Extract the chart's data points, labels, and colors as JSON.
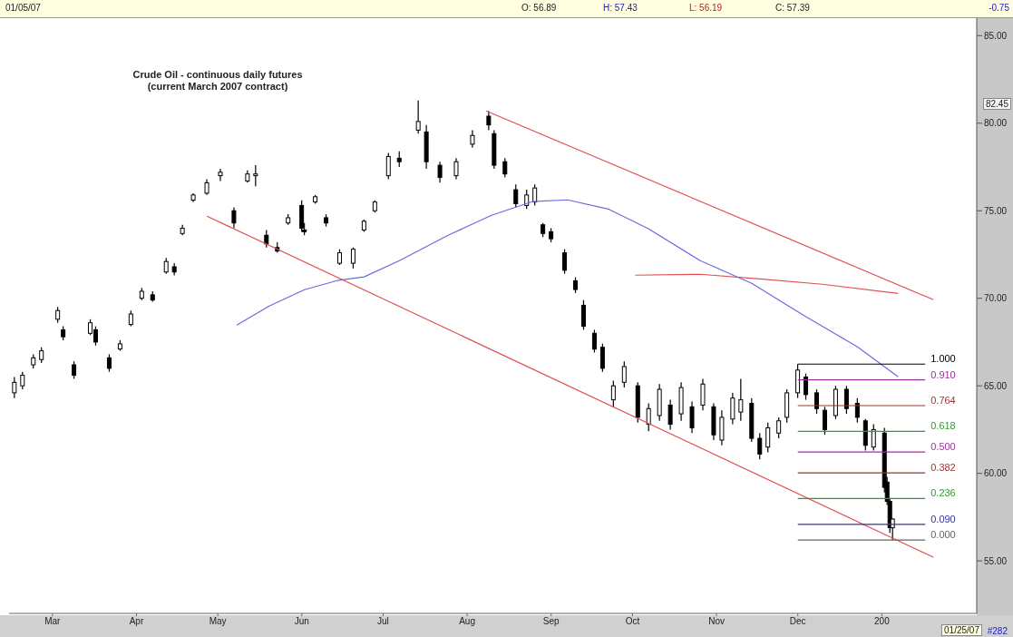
{
  "chart_data": {
    "type": "candlestick",
    "title": "Crude Oil - continuous daily futures",
    "subtitle": "(current March 2007 contract)",
    "color": "#000000",
    "x": [
      "2006-02-15",
      "2006-02-18",
      "2006-02-22",
      "2006-02-25",
      "2006-03-03",
      "2006-03-05",
      "2006-03-09",
      "2006-03-15",
      "2006-03-17",
      "2006-03-22",
      "2006-03-26",
      "2006-03-30",
      "2006-04-03",
      "2006-04-07",
      "2006-04-12",
      "2006-04-15",
      "2006-04-18",
      "2006-04-22",
      "2006-04-27",
      "2006-05-02",
      "2006-05-07",
      "2006-05-12",
      "2006-05-15",
      "2006-05-19",
      "2006-05-23",
      "2006-05-27",
      "2006-06-01",
      "2006-06-02",
      "2006-06-06",
      "2006-06-10",
      "2006-06-15",
      "2006-06-20",
      "2006-06-24",
      "2006-06-28",
      "2006-07-03",
      "2006-07-07",
      "2006-07-14",
      "2006-07-17",
      "2006-07-22",
      "2006-07-28",
      "2006-08-03",
      "2006-08-09",
      "2006-08-11",
      "2006-08-15",
      "2006-08-19",
      "2006-08-23",
      "2006-08-26",
      "2006-08-29",
      "2006-09-01",
      "2006-09-06",
      "2006-09-10",
      "2006-09-13",
      "2006-09-17",
      "2006-09-20",
      "2006-09-24",
      "2006-09-28",
      "2006-10-03",
      "2006-10-07",
      "2006-10-11",
      "2006-10-15",
      "2006-10-19",
      "2006-10-23",
      "2006-10-27",
      "2006-10-31",
      "2006-11-03",
      "2006-11-07",
      "2006-11-10",
      "2006-11-14",
      "2006-11-17",
      "2006-11-20",
      "2006-11-24",
      "2006-11-27",
      "2006-12-01",
      "2006-12-04",
      "2006-12-08",
      "2006-12-11",
      "2006-12-15",
      "2006-12-19",
      "2006-12-23",
      "2006-12-26",
      "2006-12-29",
      "2007-01-02",
      "2007-01-03",
      "2007-01-04",
      "2007-01-05"
    ],
    "ohlc": [
      [
        64.6,
        65.5,
        64.3,
        65.2
      ],
      [
        65.0,
        65.8,
        64.8,
        65.6
      ],
      [
        66.2,
        66.8,
        66.0,
        66.6
      ],
      [
        66.5,
        67.2,
        66.3,
        67.0
      ],
      [
        68.8,
        69.5,
        68.6,
        69.3
      ],
      [
        68.2,
        68.4,
        67.6,
        67.8
      ],
      [
        66.2,
        66.4,
        65.4,
        65.6
      ],
      [
        68.0,
        68.8,
        67.9,
        68.6
      ],
      [
        68.2,
        68.4,
        67.3,
        67.5
      ],
      [
        66.6,
        66.8,
        65.8,
        66.0
      ],
      [
        67.1,
        67.6,
        67.0,
        67.4
      ],
      [
        68.5,
        69.3,
        68.4,
        69.1
      ],
      [
        70.0,
        70.6,
        69.9,
        70.4
      ],
      [
        70.2,
        70.4,
        69.8,
        69.9
      ],
      [
        71.5,
        72.3,
        71.4,
        72.1
      ],
      [
        71.8,
        72.0,
        71.3,
        71.5
      ],
      [
        73.7,
        74.2,
        73.6,
        74.0
      ],
      [
        75.6,
        76.0,
        75.5,
        75.9
      ],
      [
        76.0,
        76.8,
        75.9,
        76.6
      ],
      [
        77.0,
        77.4,
        76.7,
        77.2
      ],
      [
        75.0,
        75.2,
        74.0,
        74.3
      ],
      [
        76.7,
        77.3,
        76.6,
        77.1
      ],
      [
        77.0,
        77.6,
        76.4,
        77.1
      ],
      [
        73.6,
        73.9,
        72.9,
        73.1
      ],
      [
        72.9,
        73.2,
        72.6,
        72.7
      ],
      [
        74.3,
        74.8,
        74.2,
        74.6
      ],
      [
        75.3,
        75.6,
        73.8,
        74.0
      ],
      [
        73.9,
        74.3,
        73.6,
        73.8
      ],
      [
        75.5,
        75.9,
        75.4,
        75.8
      ],
      [
        74.6,
        74.8,
        74.1,
        74.3
      ],
      [
        72.0,
        72.8,
        71.9,
        72.6
      ],
      [
        72.0,
        72.9,
        71.7,
        72.8
      ],
      [
        73.9,
        74.5,
        73.8,
        74.4
      ],
      [
        75.0,
        75.6,
        74.9,
        75.5
      ],
      [
        77.0,
        78.3,
        76.8,
        78.1
      ],
      [
        78.0,
        78.4,
        77.5,
        77.8
      ],
      [
        79.6,
        81.3,
        79.4,
        80.1
      ],
      [
        79.5,
        79.9,
        77.4,
        77.8
      ],
      [
        77.6,
        77.8,
        76.6,
        76.9
      ],
      [
        77.0,
        78.0,
        76.8,
        77.8
      ],
      [
        78.8,
        79.6,
        78.6,
        79.3
      ],
      [
        80.4,
        80.7,
        79.6,
        79.9
      ],
      [
        79.4,
        79.6,
        77.4,
        77.6
      ],
      [
        77.8,
        78.0,
        76.9,
        77.1
      ],
      [
        76.2,
        76.5,
        75.2,
        75.4
      ],
      [
        75.3,
        76.2,
        75.1,
        75.9
      ],
      [
        75.5,
        76.5,
        75.3,
        76.3
      ],
      [
        74.2,
        74.3,
        73.5,
        73.7
      ],
      [
        73.8,
        74.0,
        73.2,
        73.4
      ],
      [
        72.6,
        72.8,
        71.4,
        71.6
      ],
      [
        71.0,
        71.2,
        70.3,
        70.5
      ],
      [
        69.6,
        69.9,
        68.2,
        68.4
      ],
      [
        68.0,
        68.2,
        66.9,
        67.1
      ],
      [
        67.2,
        67.4,
        65.8,
        66.0
      ],
      [
        64.2,
        65.3,
        63.8,
        65.0
      ],
      [
        65.2,
        66.4,
        64.9,
        66.1
      ],
      [
        65.0,
        65.2,
        62.9,
        63.2
      ],
      [
        62.8,
        64.0,
        62.4,
        63.7
      ],
      [
        63.3,
        65.1,
        63.0,
        64.8
      ],
      [
        63.9,
        64.2,
        62.5,
        62.8
      ],
      [
        63.4,
        65.2,
        63.0,
        64.9
      ],
      [
        63.8,
        64.1,
        62.3,
        62.6
      ],
      [
        63.9,
        65.4,
        63.6,
        65.1
      ],
      [
        63.8,
        64.0,
        61.9,
        62.2
      ],
      [
        61.9,
        63.6,
        61.6,
        63.2
      ],
      [
        63.1,
        64.6,
        62.8,
        64.3
      ],
      [
        63.5,
        65.4,
        63.0,
        64.2
      ],
      [
        64.0,
        64.3,
        61.8,
        62.0
      ],
      [
        62.0,
        62.3,
        60.8,
        61.1
      ],
      [
        61.5,
        62.9,
        61.2,
        62.6
      ],
      [
        62.3,
        63.2,
        62.0,
        63.0
      ],
      [
        63.2,
        64.8,
        62.9,
        64.6
      ],
      [
        64.6,
        66.24,
        64.3,
        65.9
      ],
      [
        65.5,
        65.7,
        64.2,
        64.5
      ],
      [
        64.6,
        64.8,
        63.4,
        63.7
      ],
      [
        63.6,
        63.8,
        62.2,
        62.5
      ],
      [
        63.3,
        65.0,
        63.1,
        64.8
      ],
      [
        64.8,
        65.0,
        63.4,
        63.7
      ],
      [
        64.0,
        64.3,
        62.9,
        63.2
      ],
      [
        63.0,
        63.1,
        61.3,
        61.6
      ],
      [
        61.5,
        62.8,
        61.3,
        62.5
      ],
      [
        62.3,
        62.6,
        58.9,
        59.2
      ],
      [
        59.5,
        59.8,
        58.2,
        58.4
      ],
      [
        58.4,
        58.6,
        56.6,
        56.9
      ],
      [
        56.89,
        57.43,
        56.19,
        57.39
      ]
    ],
    "series": [
      {
        "type": "line",
        "color": "#6a6ae0",
        "x": [
          "2006-05-08",
          "2006-05-20",
          "2006-06-02",
          "2006-06-14",
          "2006-06-24",
          "2006-07-07",
          "2006-07-25",
          "2006-08-10",
          "2006-08-25",
          "2006-09-07",
          "2006-09-22",
          "2006-10-07",
          "2006-10-26",
          "2006-11-14",
          "2006-12-03",
          "2006-12-23",
          "2007-01-07"
        ],
        "values": [
          68.47,
          69.56,
          70.49,
          71.01,
          71.22,
          72.15,
          73.6,
          74.74,
          75.52,
          75.62,
          75.1,
          73.96,
          72.15,
          70.85,
          69.04,
          67.23,
          65.52
        ]
      },
      {
        "type": "line",
        "color": "#e05050",
        "x": [
          "2006-10-02",
          "2006-10-26",
          "2006-11-17",
          "2006-12-10",
          "2007-01-07"
        ],
        "values": [
          71.32,
          71.37,
          71.11,
          70.8,
          70.28
        ]
      },
      {
        "type": "line",
        "color": "#e05050",
        "x": [
          "2006-08-08",
          "2007-01-20"
        ],
        "values": [
          80.7,
          69.92
        ]
      },
      {
        "type": "line",
        "color": "#e05050",
        "x": [
          "2006-04-27",
          "2007-01-20"
        ],
        "values": [
          74.69,
          55.21
        ]
      },
      {
        "type": "line",
        "name": "1.000",
        "color": "#000000",
        "x": [
          "2006-12-01",
          "2007-01-17"
        ],
        "values": [
          66.24,
          66.24
        ]
      },
      {
        "type": "line",
        "name": "0.910",
        "color": "#993399",
        "x": [
          "2006-12-01",
          "2007-01-17"
        ],
        "values": [
          65.34,
          65.34
        ]
      },
      {
        "type": "line",
        "name": "0.764",
        "color": "#993333",
        "x": [
          "2006-12-01",
          "2007-01-17"
        ],
        "values": [
          63.87,
          63.87
        ]
      },
      {
        "type": "line",
        "name": "0.618",
        "color": "#339933",
        "x": [
          "2006-12-01",
          "2007-01-17"
        ],
        "values": [
          62.4,
          62.4
        ]
      },
      {
        "type": "line",
        "name": "0.500",
        "color": "#993399",
        "x": [
          "2006-12-01",
          "2007-01-17"
        ],
        "values": [
          61.22,
          61.22
        ]
      },
      {
        "type": "line",
        "name": "0.382",
        "color": "#993333",
        "x": [
          "2006-12-01",
          "2007-01-17"
        ],
        "values": [
          60.03,
          60.03
        ]
      },
      {
        "type": "line",
        "name": "0.236",
        "color": "#339933",
        "x": [
          "2006-12-01",
          "2007-01-17"
        ],
        "values": [
          58.56,
          58.56
        ]
      },
      {
        "type": "line",
        "name": "0.090",
        "color": "#333399",
        "x": [
          "2006-12-01",
          "2007-01-17"
        ],
        "values": [
          57.09,
          57.09
        ]
      },
      {
        "type": "line",
        "name": "0.000",
        "color": "#666666",
        "x": [
          "2006-12-01",
          "2007-01-17"
        ],
        "values": [
          56.19,
          56.19
        ]
      }
    ],
    "xlim": [
      "2006-02-13",
      "2007-02-05"
    ],
    "xticks": [
      {
        "value": "2006-03-01",
        "label": "Mar"
      },
      {
        "value": "2006-04-01",
        "label": "Apr"
      },
      {
        "value": "2006-05-01",
        "label": "May"
      },
      {
        "value": "2006-06-01",
        "label": "Jun"
      },
      {
        "value": "2006-07-01",
        "label": "Jul"
      },
      {
        "value": "2006-08-01",
        "label": "Aug"
      },
      {
        "value": "2006-09-01",
        "label": "Sep"
      },
      {
        "value": "2006-10-01",
        "label": "Oct"
      },
      {
        "value": "2006-11-01",
        "label": "Nov"
      },
      {
        "value": "2006-12-01",
        "label": "Dec"
      },
      {
        "value": "2007-01-01",
        "label": "200"
      }
    ],
    "ylim": [
      52,
      86
    ],
    "yticks": [
      {
        "value": 55,
        "label": "55.00"
      },
      {
        "value": 60,
        "label": "60.00"
      },
      {
        "value": 65,
        "label": "65.00"
      },
      {
        "value": 70,
        "label": "70.00"
      },
      {
        "value": 75,
        "label": "75.00"
      },
      {
        "value": 80,
        "label": "80.00"
      },
      {
        "value": 85,
        "label": "85.00"
      }
    ],
    "annotations": [
      "01/05/07",
      "O: 56.89",
      "H: 57.43",
      "L: 56.19",
      "C: 57.39",
      "-0.75",
      "82.45",
      "01/25/07",
      "#282"
    ]
  }
}
